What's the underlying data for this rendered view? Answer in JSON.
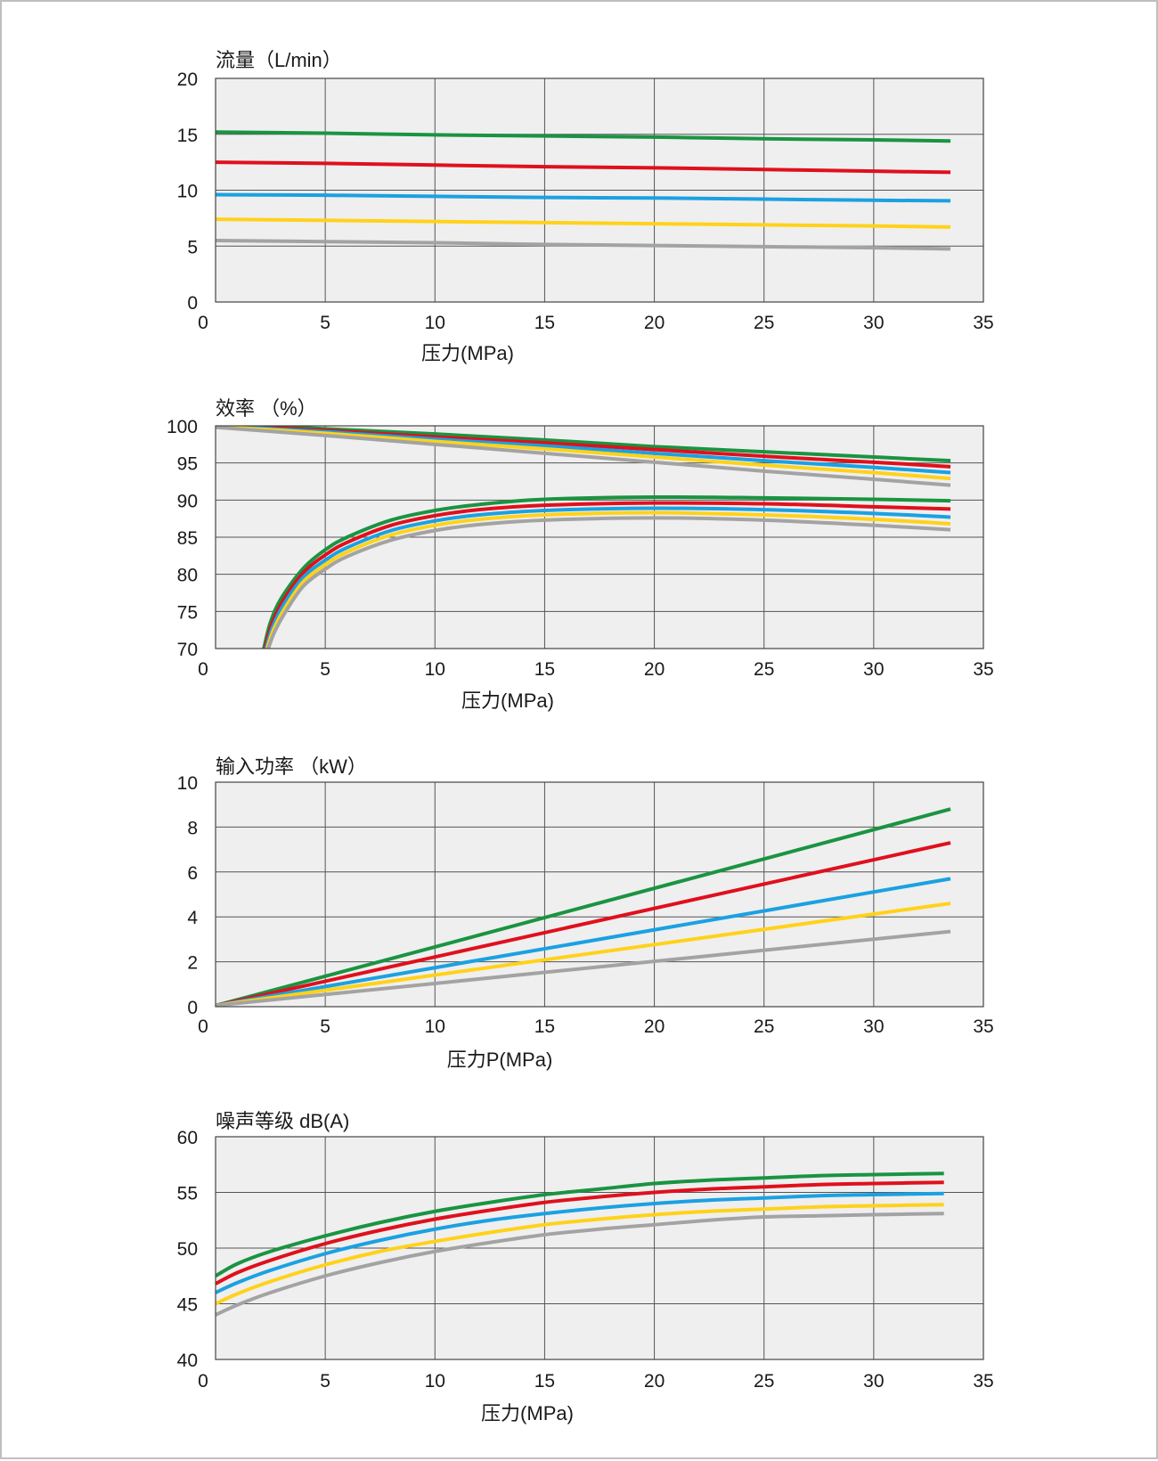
{
  "colors": {
    "green": "#1a9441",
    "red": "#e0101d",
    "blue": "#1ba1e2",
    "yellow": "#ffd21a",
    "gray": "#a3a3a3",
    "plot_bg": "#efefef",
    "grid": "#555555",
    "border": "#bfbfbf"
  },
  "chart_data": [
    {
      "type": "line",
      "title": "流量（L/min）",
      "xlabel": "压力(MPa)",
      "ylabel": "",
      "xlim": [
        0,
        35
      ],
      "ylim": [
        0,
        20
      ],
      "xticks": [
        0,
        5,
        10,
        15,
        20,
        25,
        30,
        35
      ],
      "yticks": [
        0,
        5,
        10,
        15,
        20
      ],
      "xtick_labels": [
        "0",
        "5",
        "10",
        "15",
        "20",
        "25",
        "30",
        "35"
      ],
      "ytick_labels": [
        "0",
        "5",
        "10",
        "15",
        "20"
      ],
      "grid": true,
      "series": [
        {
          "color": "green",
          "x": [
            0,
            5,
            10,
            15,
            20,
            25,
            30,
            33.5
          ],
          "y": [
            15.2,
            15.1,
            14.95,
            14.85,
            14.75,
            14.6,
            14.5,
            14.4
          ]
        },
        {
          "color": "red",
          "x": [
            0,
            5,
            10,
            15,
            20,
            25,
            30,
            33.5
          ],
          "y": [
            12.5,
            12.4,
            12.25,
            12.1,
            12.0,
            11.85,
            11.7,
            11.6
          ]
        },
        {
          "color": "blue",
          "x": [
            0,
            5,
            10,
            15,
            20,
            25,
            30,
            33.5
          ],
          "y": [
            9.6,
            9.55,
            9.45,
            9.35,
            9.3,
            9.2,
            9.1,
            9.05
          ]
        },
        {
          "color": "yellow",
          "x": [
            0,
            5,
            10,
            15,
            20,
            25,
            30,
            33.5
          ],
          "y": [
            7.4,
            7.3,
            7.2,
            7.1,
            7.0,
            6.9,
            6.8,
            6.7
          ]
        },
        {
          "color": "gray",
          "x": [
            0,
            5,
            10,
            15,
            20,
            25,
            30,
            33.5
          ],
          "y": [
            5.5,
            5.4,
            5.3,
            5.15,
            5.05,
            4.95,
            4.85,
            4.75
          ]
        }
      ]
    },
    {
      "type": "line",
      "title": "效率 （%）",
      "xlabel": "压力(MPa)",
      "ylabel": "",
      "xlim": [
        0,
        35
      ],
      "ylim": [
        70,
        100
      ],
      "xticks": [
        0,
        5,
        10,
        15,
        20,
        25,
        30,
        35
      ],
      "yticks": [
        70,
        75,
        80,
        85,
        90,
        95,
        100
      ],
      "xtick_labels": [
        "0",
        "5",
        "10",
        "15",
        "20",
        "25",
        "30",
        "35"
      ],
      "ytick_labels": [
        "70",
        "75",
        "80",
        "85",
        "90",
        "95",
        "100"
      ],
      "grid": true,
      "series": [
        {
          "color": "green",
          "x": [
            0,
            5,
            10,
            15,
            20,
            25,
            30,
            33.5
          ],
          "y": [
            100.3,
            99.6,
            98.9,
            98.1,
            97.2,
            96.5,
            95.8,
            95.3
          ]
        },
        {
          "color": "red",
          "x": [
            0,
            5,
            10,
            15,
            20,
            25,
            30,
            33.5
          ],
          "y": [
            100.1,
            99.4,
            98.5,
            97.7,
            96.8,
            95.9,
            95.1,
            94.5
          ]
        },
        {
          "color": "blue",
          "x": [
            0,
            5,
            10,
            15,
            20,
            25,
            30,
            33.5
          ],
          "y": [
            100.0,
            99.2,
            98.2,
            97.3,
            96.3,
            95.3,
            94.4,
            93.7
          ]
        },
        {
          "color": "yellow",
          "x": [
            0,
            5,
            10,
            15,
            20,
            25,
            30,
            33.5
          ],
          "y": [
            99.9,
            99.0,
            97.9,
            96.9,
            95.8,
            94.7,
            93.7,
            92.9
          ]
        },
        {
          "color": "gray",
          "x": [
            0,
            5,
            10,
            15,
            20,
            25,
            30,
            33.5
          ],
          "y": [
            99.8,
            98.7,
            97.5,
            96.3,
            95.1,
            93.9,
            92.8,
            92.0
          ]
        },
        {
          "color": "green",
          "x": [
            2.2,
            2.5,
            3,
            4,
            5,
            6,
            8,
            10,
            12,
            15,
            20,
            25,
            30,
            33.5
          ],
          "y": [
            70,
            73.5,
            76.8,
            80.8,
            83.3,
            85.0,
            87.3,
            88.6,
            89.4,
            90.1,
            90.4,
            90.3,
            90.1,
            89.9
          ]
        },
        {
          "color": "red",
          "x": [
            2.25,
            2.55,
            3.05,
            4,
            5,
            6,
            8,
            10,
            12,
            15,
            20,
            25,
            30,
            33.5
          ],
          "y": [
            70,
            73.2,
            76.3,
            80.2,
            82.6,
            84.3,
            86.6,
            87.9,
            88.7,
            89.3,
            89.6,
            89.5,
            89.1,
            88.8
          ]
        },
        {
          "color": "blue",
          "x": [
            2.3,
            2.6,
            3.1,
            4,
            5,
            6,
            8,
            10,
            12,
            15,
            20,
            25,
            30,
            33.5
          ],
          "y": [
            70,
            72.9,
            75.9,
            79.6,
            81.9,
            83.6,
            85.9,
            87.2,
            88.0,
            88.6,
            88.9,
            88.7,
            88.2,
            87.7
          ]
        },
        {
          "color": "yellow",
          "x": [
            2.35,
            2.65,
            3.15,
            4,
            5,
            6,
            8,
            10,
            12,
            15,
            20,
            25,
            30,
            33.5
          ],
          "y": [
            70,
            72.6,
            75.4,
            79.0,
            81.3,
            83.0,
            85.3,
            86.6,
            87.4,
            88.0,
            88.3,
            88.0,
            87.4,
            86.8
          ]
        },
        {
          "color": "gray",
          "x": [
            2.4,
            2.7,
            3.2,
            4,
            5,
            6,
            8,
            10,
            12,
            15,
            20,
            25,
            30,
            33.5
          ],
          "y": [
            70,
            72.3,
            75.0,
            78.4,
            80.7,
            82.4,
            84.6,
            85.9,
            86.7,
            87.3,
            87.6,
            87.3,
            86.6,
            86.0
          ]
        }
      ]
    },
    {
      "type": "line",
      "title": "输入功率 （kW）",
      "xlabel": "压力P(MPa)",
      "ylabel": "",
      "xlim": [
        0,
        35
      ],
      "ylim": [
        0,
        10
      ],
      "xticks": [
        0,
        5,
        10,
        15,
        20,
        25,
        30,
        35
      ],
      "yticks": [
        0,
        2,
        4,
        6,
        8,
        10
      ],
      "xtick_labels": [
        "0",
        "5",
        "10",
        "15",
        "20",
        "25",
        "30",
        "35"
      ],
      "ytick_labels": [
        "0",
        "2",
        "4",
        "6",
        "8",
        "10"
      ],
      "grid": true,
      "series": [
        {
          "color": "green",
          "x": [
            0,
            33.5
          ],
          "y": [
            0.05,
            8.8
          ]
        },
        {
          "color": "red",
          "x": [
            0,
            33.5
          ],
          "y": [
            0.05,
            7.3
          ]
        },
        {
          "color": "blue",
          "x": [
            0,
            33.5
          ],
          "y": [
            0.05,
            5.7
          ]
        },
        {
          "color": "yellow",
          "x": [
            0,
            33.5
          ],
          "y": [
            0.05,
            4.6
          ]
        },
        {
          "color": "gray",
          "x": [
            0,
            33.5
          ],
          "y": [
            0.05,
            3.35
          ]
        }
      ]
    },
    {
      "type": "line",
      "title": "噪声等级 dB(A)",
      "xlabel": "压力(MPa)",
      "ylabel": "",
      "xlim": [
        0,
        35
      ],
      "ylim": [
        40,
        60
      ],
      "xticks": [
        0,
        5,
        10,
        15,
        20,
        25,
        30,
        35
      ],
      "yticks": [
        40,
        45,
        50,
        55,
        60
      ],
      "xtick_labels": [
        "0",
        "5",
        "10",
        "15",
        "20",
        "25",
        "30",
        "35"
      ],
      "ytick_labels": [
        "40",
        "45",
        "50",
        "55",
        "60"
      ],
      "grid": true,
      "series": [
        {
          "color": "green",
          "x": [
            0,
            1,
            2.5,
            5,
            7.5,
            10,
            12.5,
            15,
            17.5,
            20,
            22.5,
            25,
            27.5,
            30,
            33.2
          ],
          "y": [
            47.5,
            48.6,
            49.7,
            51.1,
            52.3,
            53.3,
            54.1,
            54.8,
            55.3,
            55.8,
            56.1,
            56.3,
            56.5,
            56.6,
            56.7
          ]
        },
        {
          "color": "red",
          "x": [
            0,
            1,
            2.5,
            5,
            7.5,
            10,
            12.5,
            15,
            17.5,
            20,
            22.5,
            25,
            27.5,
            30,
            33.2
          ],
          "y": [
            46.8,
            47.8,
            48.9,
            50.4,
            51.6,
            52.6,
            53.4,
            54.1,
            54.6,
            55.0,
            55.3,
            55.5,
            55.7,
            55.8,
            55.9
          ]
        },
        {
          "color": "blue",
          "x": [
            0,
            1,
            2.5,
            5,
            7.5,
            10,
            12.5,
            15,
            17.5,
            20,
            22.5,
            25,
            27.5,
            30,
            33.2
          ],
          "y": [
            46.0,
            46.9,
            48.0,
            49.5,
            50.7,
            51.7,
            52.5,
            53.1,
            53.6,
            54.0,
            54.3,
            54.5,
            54.7,
            54.8,
            54.9
          ]
        },
        {
          "color": "yellow",
          "x": [
            0,
            1,
            2.5,
            5,
            7.5,
            10,
            12.5,
            15,
            17.5,
            20,
            22.5,
            25,
            27.5,
            30,
            33.2
          ],
          "y": [
            45.0,
            45.9,
            47.0,
            48.5,
            49.7,
            50.6,
            51.4,
            52.1,
            52.6,
            53.0,
            53.3,
            53.5,
            53.7,
            53.8,
            53.9
          ]
        },
        {
          "color": "gray",
          "x": [
            0,
            1,
            2.5,
            5,
            7.5,
            10,
            12.5,
            15,
            17.5,
            20,
            22.5,
            25,
            27.5,
            30,
            33.2
          ],
          "y": [
            44.0,
            44.9,
            46.0,
            47.5,
            48.7,
            49.7,
            50.5,
            51.2,
            51.7,
            52.1,
            52.5,
            52.8,
            52.9,
            53.0,
            53.1
          ]
        }
      ]
    }
  ]
}
